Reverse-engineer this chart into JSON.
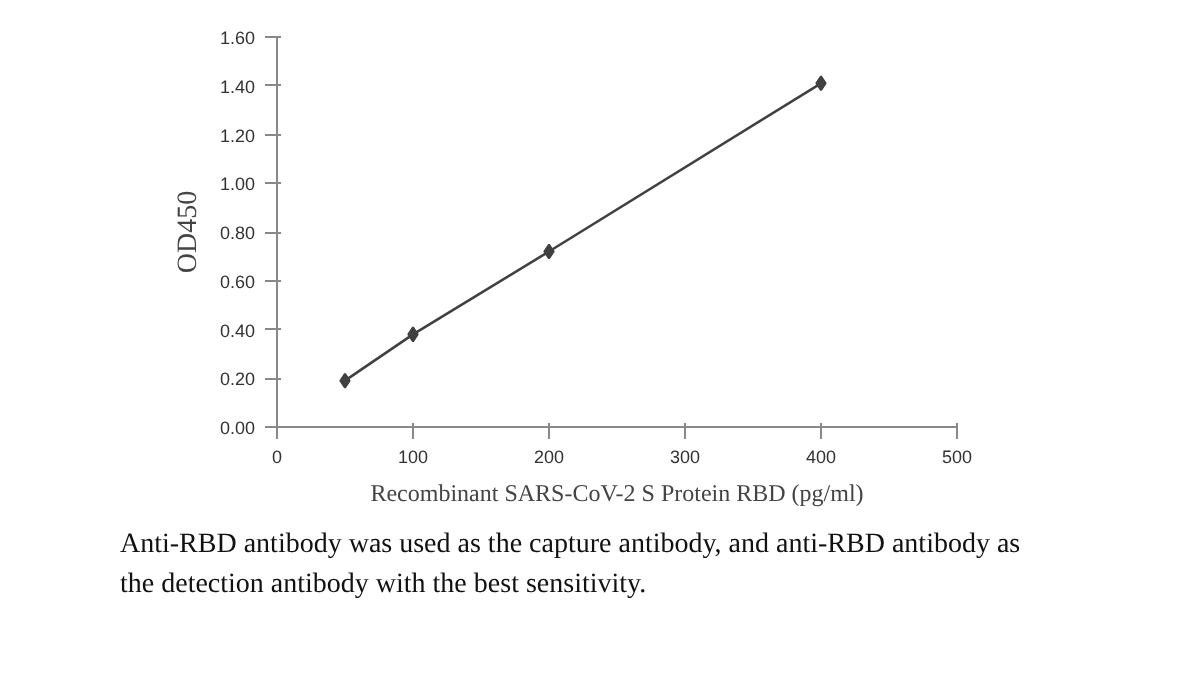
{
  "chart_data": {
    "type": "line",
    "xlabel": "Recombinant SARS-CoV-2 S Protein RBD (pg/ml)",
    "ylabel": "OD450",
    "x": [
      50,
      100,
      200,
      400
    ],
    "series": [
      {
        "color": "#404040",
        "values": [
          0.19,
          0.38,
          0.72,
          1.41
        ]
      }
    ],
    "xlim": [
      0,
      500
    ],
    "xticks": [
      0,
      100,
      200,
      300,
      400,
      500
    ],
    "ylim": [
      0,
      1.6
    ],
    "yticks": [
      {
        "value": 0,
        "label": "0.00"
      },
      {
        "value": 0.2,
        "label": "0.20"
      },
      {
        "value": 0.4,
        "label": "0.40"
      },
      {
        "value": 0.6,
        "label": "0.60"
      },
      {
        "value": 0.8,
        "label": "0.80"
      },
      {
        "value": 1.0,
        "label": "1.00"
      },
      {
        "value": 1.2,
        "label": "1.20"
      },
      {
        "value": 1.4,
        "label": "1.40"
      },
      {
        "value": 1.6,
        "label": "1.60"
      }
    ],
    "marker": "diamond",
    "line_style": "solid",
    "grid": false,
    "annotations": [
      "Anti-RBD antibody was used as the capture antibody, and anti-RBD antibody as the detection antibody with the best sensitivity."
    ]
  }
}
